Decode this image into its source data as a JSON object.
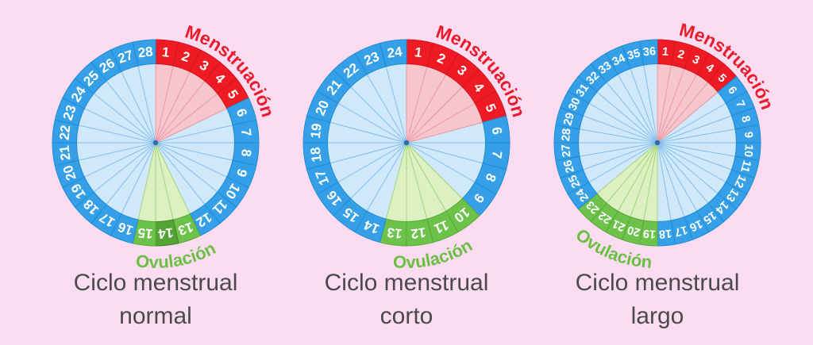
{
  "background_color": "#fcdcf1",
  "colors": {
    "ring_blue": "#35a0e8",
    "ring_blue_stroke": "#1f8cd4",
    "ring_red": "#ee1b25",
    "ring_red_stroke": "#d41420",
    "ring_green": "#6cc24a",
    "ring_green_stroke": "#58a936",
    "ring_green_dark": "#53a335",
    "ring_green_dark_stroke": "#438128",
    "inner_blue": "#cfe9fb",
    "inner_red": "#f6c6cc",
    "inner_green": "#ddf0c2",
    "line_blue": "#86bee9",
    "line_red": "#ea97a2",
    "line_green": "#a3d37c",
    "number_color": "#ffffff",
    "menstruation_label_color": "#e81c2c",
    "ovulation_label_color": "#6cbf45",
    "caption_color": "#4a4a4d",
    "center_dot": "#2a6db5"
  },
  "wheels": [
    {
      "id": "normal",
      "caption_line1": "Ciclo menstrual",
      "caption_line2": "normal",
      "total_days": 28,
      "menstruation": {
        "label": "Menstruación",
        "days": [
          1,
          2,
          3,
          4,
          5
        ],
        "label_angle": 46
      },
      "ovulation": {
        "label": "Ovulación",
        "days": [
          13,
          14,
          15
        ],
        "dark_days": [
          14
        ],
        "label_angle": 170
      },
      "number_font_size": 17
    },
    {
      "id": "corto",
      "caption_line1": "Ciclo menstrual",
      "caption_line2": "corto",
      "total_days": 24,
      "menstruation": {
        "label": "Menstruación",
        "days": [
          1,
          2,
          3,
          4,
          5
        ],
        "label_angle": 46
      },
      "ovulation": {
        "label": "Ovulación",
        "days": [
          10,
          11,
          12,
          13
        ],
        "dark_days": [],
        "label_angle": 167
      },
      "number_font_size": 17
    },
    {
      "id": "largo",
      "caption_line1": "Ciclo menstrual",
      "caption_line2": "largo",
      "total_days": 36,
      "menstruation": {
        "label": "Menstruación",
        "days": [
          1,
          2,
          3,
          4,
          5
        ],
        "label_angle": 42
      },
      "ovulation": {
        "label": "Ovulación",
        "days": [
          19,
          20,
          21,
          22,
          23
        ],
        "dark_days": [],
        "label_angle": 202
      },
      "number_font_size": 14.5
    }
  ]
}
